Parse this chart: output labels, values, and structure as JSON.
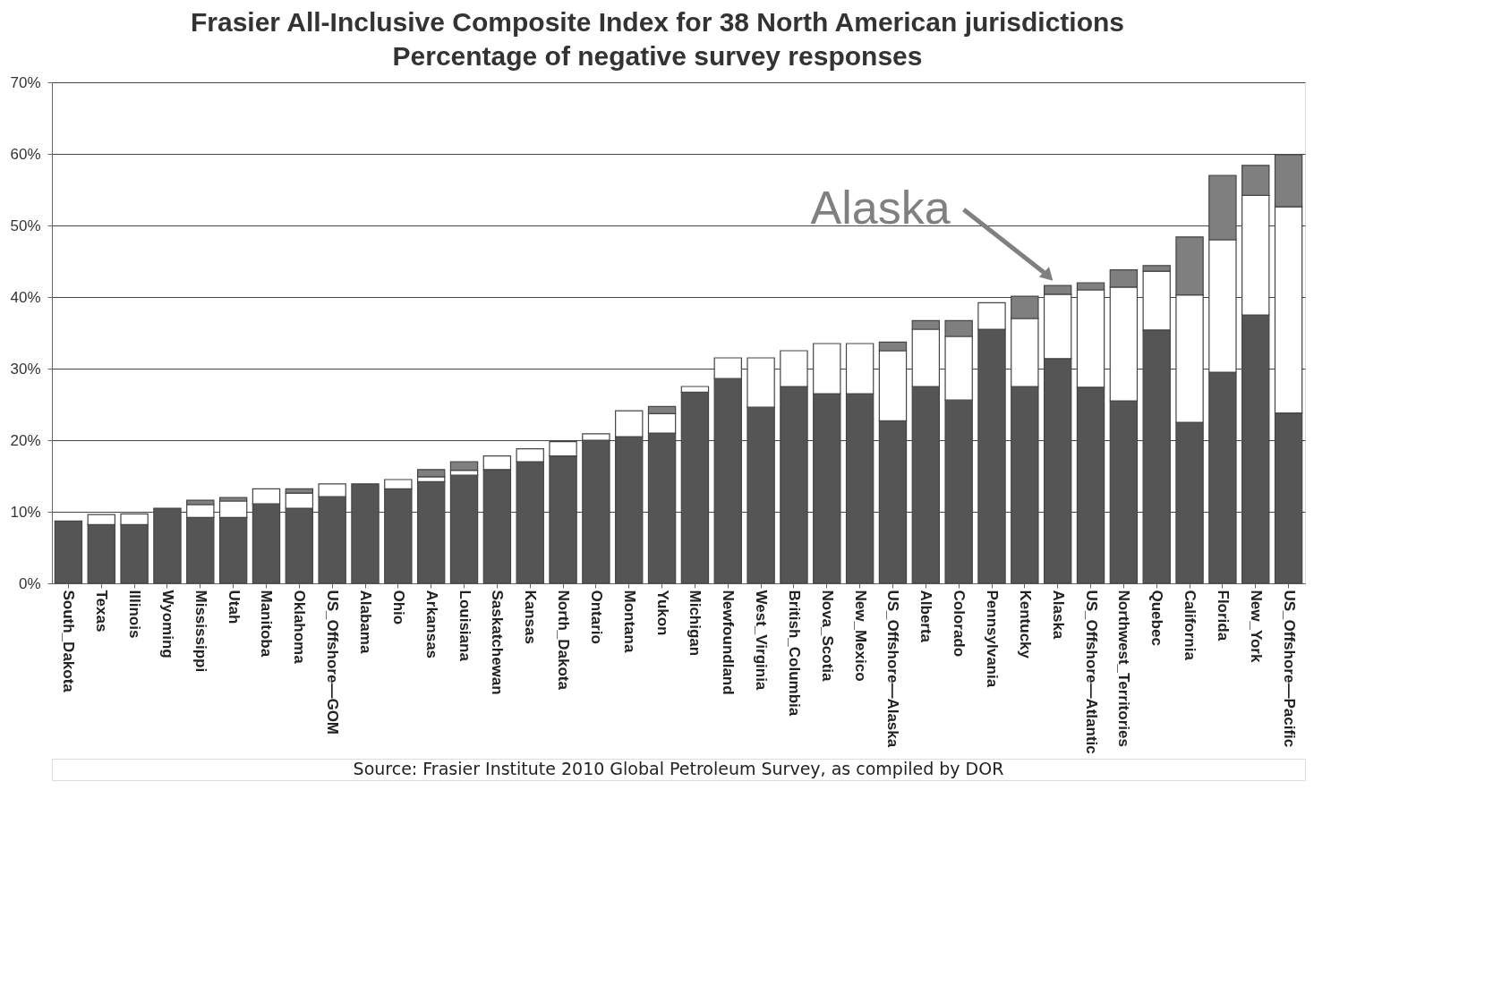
{
  "chart_data": {
    "type": "bar",
    "stacked": true,
    "title": "Frasier All-Inclusive Composite Index for 38 North American jurisdictions",
    "subtitle": "Percentage of negative survey responses",
    "categories": [
      "South_Dakota",
      "Texas",
      "Illinois",
      "Wyoming",
      "Mississippi",
      "Utah",
      "Manitoba",
      "Oklahoma",
      "US_Offshore—GOM",
      "Alabama",
      "Ohio",
      "Arkansas",
      "Louisiana",
      "Saskatchewan",
      "Kansas",
      "North_Dakota",
      "Ontario",
      "Montana",
      "Yukon",
      "Michigan",
      "Newfoundland",
      "West_Virginia",
      "British_Columbia",
      "Nova_Scotia",
      "New_Mexico",
      "US_Offshore—Alaska",
      "Alberta",
      "Colorado",
      "Pennsylvania",
      "Kentucky",
      "Alaska",
      "US_Offshore—Atlantic",
      "Northwest_Territories",
      "Quebec",
      "California",
      "Florida",
      "New_York",
      "US_Offshore—Pacific"
    ],
    "series": [
      {
        "color": "#555555",
        "values": [
          8.7,
          8.2,
          8.2,
          10.5,
          9.2,
          9.2,
          11.1,
          10.5,
          12.1,
          13.9,
          13.2,
          14.2,
          15.1,
          15.9,
          17.0,
          17.8,
          20.0,
          20.5,
          21.0,
          26.7,
          28.6,
          24.6,
          27.5,
          26.5,
          26.5,
          22.7,
          27.5,
          25.6,
          35.5,
          27.5,
          31.4,
          27.4,
          25.5,
          35.4,
          22.5,
          29.5,
          37.5,
          23.8
        ]
      },
      {
        "color": "#ffffff",
        "values": [
          null,
          1.4,
          1.5,
          null,
          1.8,
          2.3,
          2.1,
          2.1,
          1.8,
          null,
          1.3,
          0.7,
          0.7,
          1.9,
          1.8,
          2.0,
          0.9,
          3.6,
          2.7,
          0.8,
          2.9,
          6.9,
          5.0,
          7.0,
          7.0,
          9.8,
          8.0,
          8.9,
          3.7,
          9.5,
          9.0,
          13.6,
          15.9,
          8.2,
          17.8,
          18.5,
          16.7,
          28.8
        ]
      },
      {
        "color": "#7f7f7f",
        "values": [
          null,
          null,
          null,
          null,
          0.6,
          0.5,
          null,
          0.6,
          null,
          null,
          null,
          1.0,
          1.2,
          null,
          null,
          null,
          null,
          null,
          1.0,
          null,
          null,
          null,
          null,
          null,
          null,
          1.2,
          1.2,
          2.2,
          null,
          3.1,
          1.2,
          1.0,
          2.4,
          0.8,
          8.1,
          9.0,
          4.2,
          7.3
        ]
      }
    ],
    "ylim": [
      0,
      70
    ],
    "yticks": [
      {
        "value": 0,
        "label": "0%"
      },
      {
        "value": 10,
        "label": "10%"
      },
      {
        "value": 20,
        "label": "20%"
      },
      {
        "value": 30,
        "label": "30%"
      },
      {
        "value": 40,
        "label": "40%"
      },
      {
        "value": 50,
        "label": "50%"
      },
      {
        "value": 60,
        "label": "60%"
      },
      {
        "value": 70,
        "label": "70%"
      }
    ],
    "grid": "y",
    "legend": false,
    "annotations": [
      {
        "text": "Alaska",
        "x": "Alaska",
        "y": 41.6
      },
      "Source:  Frasier Institute 2010 Global Petroleum Survey, as compiled by DOR"
    ]
  }
}
